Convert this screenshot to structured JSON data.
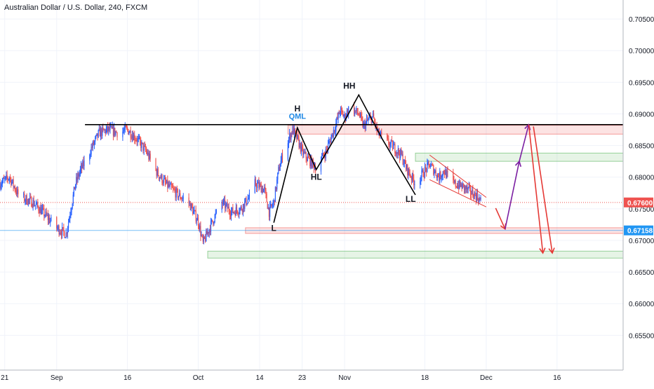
{
  "chart_data": {
    "type": "candlestick",
    "title": "Australian Dollar / U.S. Dollar, 240, FXCM",
    "ylim": [
      0.6495,
      0.708
    ],
    "y_ticks": [
      0.705,
      0.7,
      0.695,
      0.69,
      0.685,
      0.68,
      0.675,
      0.67,
      0.665,
      0.66,
      0.655
    ],
    "y_tick_labels": [
      "0.70500",
      "0.70000",
      "0.69500",
      "0.69000",
      "0.68500",
      "0.68000",
      "0.67500",
      "0.67000",
      "0.66500",
      "0.66000",
      "0.65500"
    ],
    "x_range": [
      "2019-08-20",
      "2019-12-30"
    ],
    "x_ticks": [
      {
        "date": "2019-08-21",
        "label": "21"
      },
      {
        "date": "2019-09-01",
        "label": "Sep"
      },
      {
        "date": "2019-09-16",
        "label": "16"
      },
      {
        "date": "2019-10-01",
        "label": "Oct"
      },
      {
        "date": "2019-10-14",
        "label": "14"
      },
      {
        "date": "2019-10-23",
        "label": "23"
      },
      {
        "date": "2019-11-01",
        "label": "Nov"
      },
      {
        "date": "2019-11-18",
        "label": "18"
      },
      {
        "date": "2019-12-01",
        "label": "Dec"
      },
      {
        "date": "2019-12-16",
        "label": "16"
      }
    ],
    "price_line": {
      "value": 0.676,
      "label": "0.67600",
      "color": "#ef5350"
    },
    "blue_line": {
      "value": 0.67158,
      "label": "0.67158",
      "color": "#2196f3"
    },
    "colors": {
      "up": "#2962ff",
      "down": "#ef5350",
      "grid": "#f0f3fa",
      "axis_text": "#131722"
    },
    "price_path": [
      [
        "2019-08-20",
        0.679
      ],
      [
        "2019-08-22",
        0.68
      ],
      [
        "2019-08-24",
        0.677
      ],
      [
        "2019-08-27",
        0.676
      ],
      [
        "2019-08-29",
        0.6745
      ],
      [
        "2019-09-01",
        0.672
      ],
      [
        "2019-09-03",
        0.671
      ],
      [
        "2019-09-04",
        0.675
      ],
      [
        "2019-09-05",
        0.679
      ],
      [
        "2019-09-06",
        0.681
      ],
      [
        "2019-09-08",
        0.684
      ],
      [
        "2019-09-10",
        0.687
      ],
      [
        "2019-09-12",
        0.6875
      ],
      [
        "2019-09-14",
        0.687
      ],
      [
        "2019-09-16",
        0.6875
      ],
      [
        "2019-09-18",
        0.686
      ],
      [
        "2019-09-20",
        0.684
      ],
      [
        "2019-09-22",
        0.681
      ],
      [
        "2019-09-24",
        0.679
      ],
      [
        "2019-09-27",
        0.677
      ],
      [
        "2019-09-29",
        0.676
      ],
      [
        "2019-10-01",
        0.673
      ],
      [
        "2019-10-02",
        0.6695
      ],
      [
        "2019-10-04",
        0.673
      ],
      [
        "2019-10-06",
        0.676
      ],
      [
        "2019-10-08",
        0.6745
      ],
      [
        "2019-10-10",
        0.675
      ],
      [
        "2019-10-12",
        0.677
      ],
      [
        "2019-10-13",
        0.679
      ],
      [
        "2019-10-15",
        0.678
      ],
      [
        "2019-10-16",
        0.6745
      ],
      [
        "2019-10-17",
        0.676
      ],
      [
        "2019-10-18",
        0.681
      ],
      [
        "2019-10-19",
        0.684
      ],
      [
        "2019-10-21",
        0.6875
      ],
      [
        "2019-10-22",
        0.686
      ],
      [
        "2019-10-23",
        0.684
      ],
      [
        "2019-10-24",
        0.683
      ],
      [
        "2019-10-26",
        0.6815
      ],
      [
        "2019-10-28",
        0.684
      ],
      [
        "2019-10-29",
        0.686
      ],
      [
        "2019-10-30",
        0.688
      ],
      [
        "2019-10-31",
        0.6905
      ],
      [
        "2019-11-01",
        0.6895
      ],
      [
        "2019-11-02",
        0.691
      ],
      [
        "2019-11-04",
        0.69
      ],
      [
        "2019-11-05",
        0.688
      ],
      [
        "2019-11-06",
        0.689
      ],
      [
        "2019-11-07",
        0.6895
      ],
      [
        "2019-11-08",
        0.687
      ],
      [
        "2019-11-10",
        0.6855
      ],
      [
        "2019-11-11",
        0.685
      ],
      [
        "2019-11-13",
        0.6835
      ],
      [
        "2019-11-14",
        0.6815
      ],
      [
        "2019-11-16",
        0.679
      ],
      [
        "2019-11-17",
        0.68
      ],
      [
        "2019-11-18",
        0.681
      ],
      [
        "2019-11-19",
        0.682
      ],
      [
        "2019-11-21",
        0.68
      ],
      [
        "2019-11-22",
        0.681
      ],
      [
        "2019-11-24",
        0.679
      ],
      [
        "2019-11-26",
        0.6785
      ],
      [
        "2019-11-28",
        0.6775
      ],
      [
        "2019-11-29",
        0.677
      ],
      [
        "2019-11-30",
        0.676
      ]
    ],
    "zones": [
      {
        "x1": "2019-10-20",
        "x2": "2019-12-30",
        "y1": 0.6868,
        "y2": 0.6882,
        "kind": "supply"
      },
      {
        "x1": "2019-11-16",
        "x2": "2019-12-30",
        "y1": 0.6825,
        "y2": 0.6838,
        "kind": "demand"
      },
      {
        "x1": "2019-10-11",
        "x2": "2019-12-30",
        "y1": 0.6711,
        "y2": 0.672,
        "kind": "supply"
      },
      {
        "x1": "2019-10-03",
        "x2": "2019-12-30",
        "y1": 0.6672,
        "y2": 0.6683,
        "kind": "demand"
      }
    ],
    "h_lines": [
      {
        "x1": "2019-09-07",
        "x2": "2019-12-30",
        "y": 0.6883
      }
    ],
    "pattern_path": [
      [
        "2019-10-17",
        0.6728
      ],
      [
        "2019-10-22",
        0.6878
      ],
      [
        "2019-10-26",
        0.6812
      ],
      [
        "2019-10-31",
        0.6875
      ],
      [
        "2019-11-04",
        0.693
      ],
      [
        "2019-11-09",
        0.686
      ],
      [
        "2019-11-16",
        0.6772
      ]
    ],
    "wedge": [
      {
        "p1": [
          "2019-11-19",
          0.6835
        ],
        "p2": [
          "2019-12-01",
          0.6768
        ]
      },
      {
        "p1": [
          "2019-11-19",
          0.6796
        ],
        "p2": [
          "2019-12-01",
          0.6753
        ]
      }
    ],
    "projections": [
      {
        "color": "#e53935",
        "points": [
          [
            "2019-12-03",
            0.6751
          ],
          [
            "2019-12-05",
            0.6718
          ]
        ]
      },
      {
        "color": "#7b1fa2",
        "points": [
          [
            "2019-12-05",
            0.6718
          ],
          [
            "2019-12-08",
            0.6825
          ],
          [
            "2019-12-10",
            0.6883
          ]
        ]
      },
      {
        "color": "#e53935",
        "points": [
          [
            "2019-12-10",
            0.6883
          ],
          [
            "2019-12-13",
            0.668
          ]
        ]
      },
      {
        "color": "#e53935",
        "points": [
          [
            "2019-12-11",
            0.688
          ],
          [
            "2019-12-15",
            0.668
          ]
        ]
      }
    ],
    "annotations": [
      {
        "text": "H",
        "date": "2019-10-22",
        "value": 0.6904,
        "color": "#131722"
      },
      {
        "text": "QML",
        "date": "2019-10-22",
        "value": 0.6892,
        "color": "#1e88e5"
      },
      {
        "text": "HH",
        "date": "2019-11-02",
        "value": 0.694,
        "color": "#131722"
      },
      {
        "text": "HL",
        "date": "2019-10-26",
        "value": 0.6796,
        "color": "#131722"
      },
      {
        "text": "LL",
        "date": "2019-11-15",
        "value": 0.6761,
        "color": "#131722"
      },
      {
        "text": "L",
        "date": "2019-10-17",
        "value": 0.6715,
        "color": "#131722"
      }
    ]
  }
}
